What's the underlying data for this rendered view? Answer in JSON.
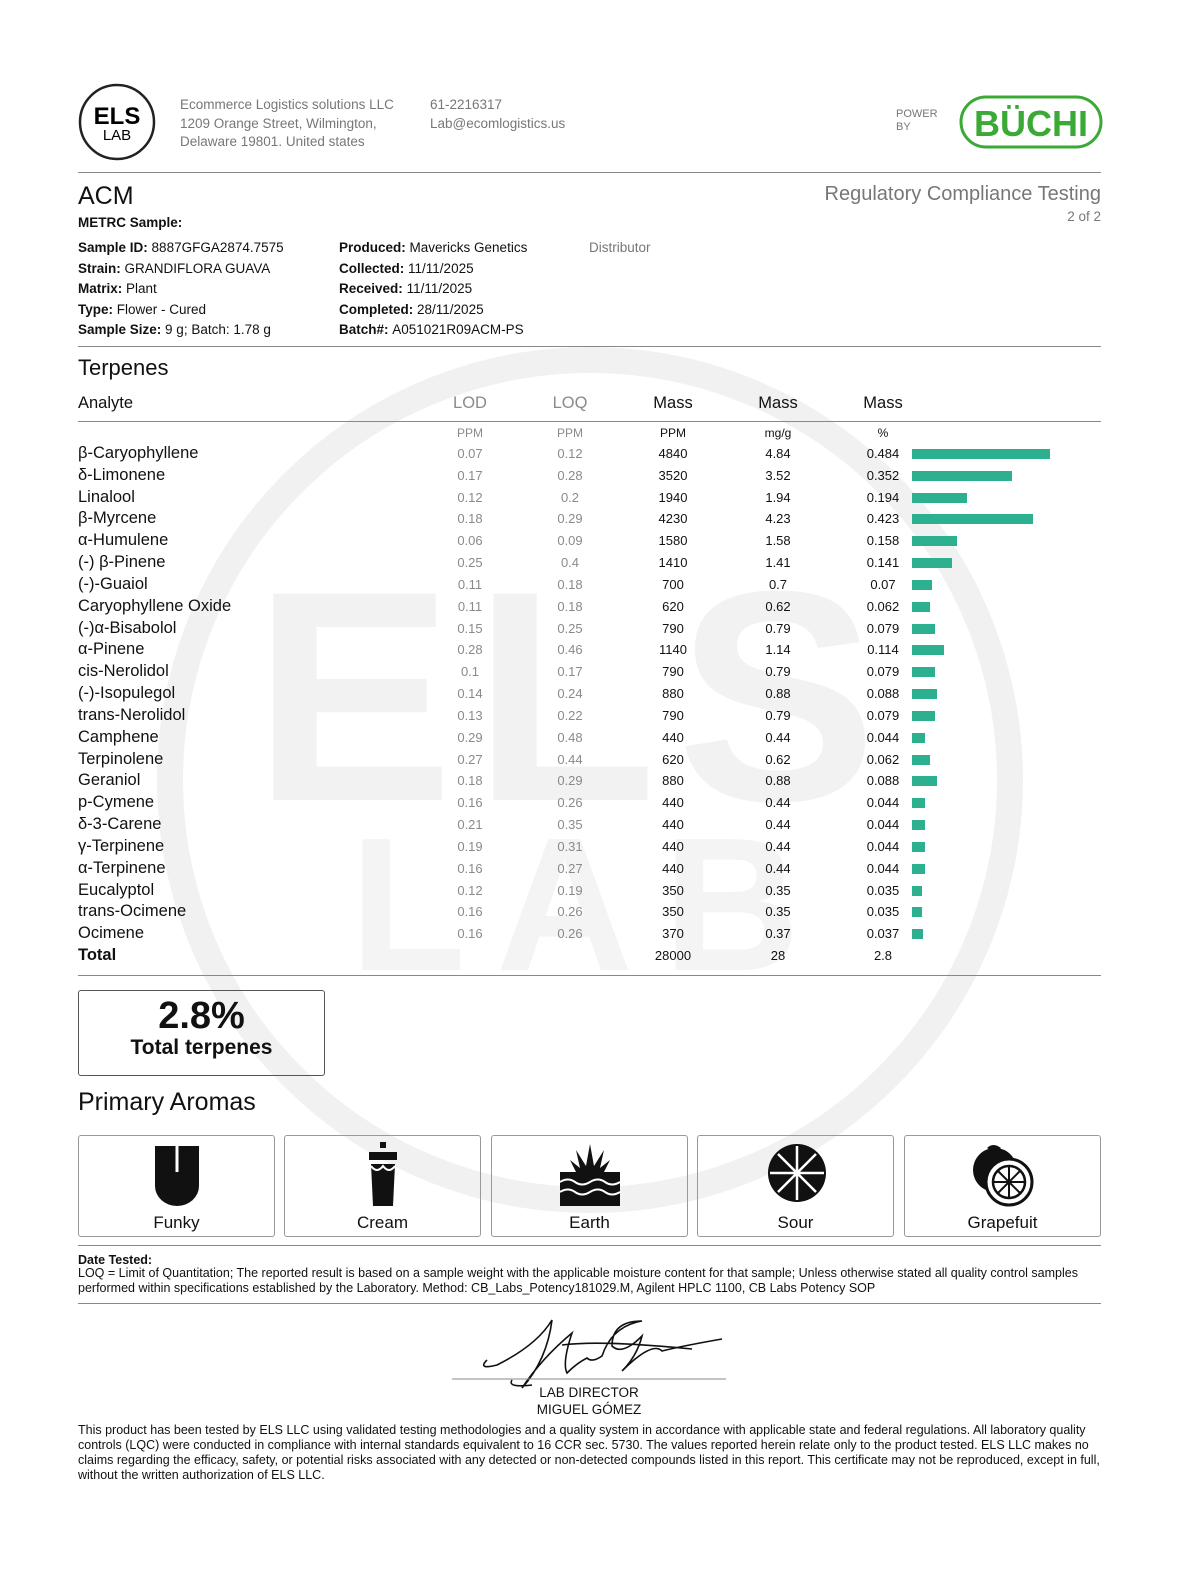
{
  "watermark": [
    "ELS",
    "LAB"
  ],
  "header": {
    "logo": [
      "ELS",
      "LAB"
    ],
    "company": [
      "Ecommerce Logistics solutions LLC",
      "1209 Orange Street, Wilmington,",
      "Delaware 19801. United states"
    ],
    "contact": [
      "61-2216317",
      "Lab@ecomlogistics.us"
    ],
    "powered_by": [
      "POWER",
      "BY"
    ],
    "brand": "BÜCHI"
  },
  "sample": {
    "name": "ACM",
    "metrc": "METRC Sample:",
    "report_title": "Regulatory Compliance Testing",
    "page": "2 of 2",
    "left_fields": [
      {
        "label": "Sample ID:",
        "value": "8887GFGA2874.7575"
      },
      {
        "label": "Strain:",
        "value": "GRANDIFLORA GUAVA"
      },
      {
        "label": "Matrix:",
        "value": "Plant"
      },
      {
        "label": "Type:",
        "value": "Flower - Cured"
      },
      {
        "label": "Sample Size:",
        "value": "9 g; Batch: 1.78 g"
      }
    ],
    "right_fields": [
      {
        "label": "Produced:",
        "value": "Mavericks Genetics"
      },
      {
        "label": "Collected:",
        "value": "11/11/2025"
      },
      {
        "label": "Received:",
        "value": "11/11/2025"
      },
      {
        "label": "Completed:",
        "value": "28/11/2025"
      },
      {
        "label": "Batch#:",
        "value": "A051021R09ACM-PS"
      }
    ],
    "distributor": "Distributor"
  },
  "terpenes": {
    "title": "Terpenes",
    "columns": [
      "Analyte",
      "LOD",
      "LOQ",
      "Mass",
      "Mass",
      "Mass"
    ],
    "units": [
      "PPM",
      "PPM",
      "PPM",
      "mg/g",
      "%"
    ],
    "rows": [
      [
        "β-Caryophyllene",
        0.07,
        0.12,
        4840,
        4.84,
        0.484
      ],
      [
        "δ-Limonene",
        0.17,
        0.28,
        3520,
        3.52,
        0.352
      ],
      [
        "Linalool",
        0.12,
        0.2,
        1940,
        1.94,
        0.194
      ],
      [
        "β-Myrcene",
        0.18,
        0.29,
        4230,
        4.23,
        0.423
      ],
      [
        "α-Humulene",
        0.06,
        0.09,
        1580,
        1.58,
        0.158
      ],
      [
        "(-) β-Pinene",
        0.25,
        0.4,
        1410,
        1.41,
        0.141
      ],
      [
        "(-)-Guaiol",
        0.11,
        0.18,
        700,
        0.7,
        0.07
      ],
      [
        "Caryophyllene Oxide",
        0.11,
        0.18,
        620,
        0.62,
        0.062
      ],
      [
        "(-)α-Bisabolol",
        0.15,
        0.25,
        790,
        0.79,
        0.079
      ],
      [
        "α-Pinene",
        0.28,
        0.46,
        1140,
        1.14,
        0.114
      ],
      [
        "cis-Nerolidol",
        0.1,
        0.17,
        790,
        0.79,
        0.079
      ],
      [
        "(-)-Isopulegol",
        0.14,
        0.24,
        880,
        0.88,
        0.088
      ],
      [
        "trans-Nerolidol",
        0.13,
        0.22,
        790,
        0.79,
        0.079
      ],
      [
        "Camphene",
        0.29,
        0.48,
        440,
        0.44,
        0.044
      ],
      [
        "Terpinolene",
        0.27,
        0.44,
        620,
        0.62,
        0.062
      ],
      [
        "Geraniol",
        0.18,
        0.29,
        880,
        0.88,
        0.088
      ],
      [
        "p-Cymene",
        0.16,
        0.26,
        440,
        0.44,
        0.044
      ],
      [
        "δ-3-Carene",
        0.21,
        0.35,
        440,
        0.44,
        0.044
      ],
      [
        "γ-Terpinene",
        0.19,
        0.31,
        440,
        0.44,
        0.044
      ],
      [
        "α-Terpinene",
        0.16,
        0.27,
        440,
        0.44,
        0.044
      ],
      [
        "Eucalyptol",
        0.12,
        0.19,
        350,
        0.35,
        0.035
      ],
      [
        "trans-Ocimene",
        0.16,
        0.26,
        350,
        0.35,
        0.035
      ],
      [
        "Ocimene",
        0.16,
        0.26,
        370,
        0.37,
        0.037
      ]
    ],
    "total": {
      "label": "Total",
      "ppm": 28000,
      "mg_g": 28,
      "percent": 2.8
    },
    "bar_color": "#2db08f"
  },
  "summary": {
    "value": "2.8%",
    "label": "Total terpenes"
  },
  "aromas": {
    "title": "Primary Aromas",
    "items": [
      "Funky",
      "Cream",
      "Earth",
      "Sour",
      "Grapefuit"
    ]
  },
  "footer": {
    "date_tested": "Date Tested:",
    "note": "LOQ = Limit of Quantitation; The reported result is based on a sample weight with the applicable moisture content for that sample; Unless otherwise stated all quality control samples performed within specifications established by the Laboratory. Method: CB_Labs_Potency181029.M, Agilent HPLC 1100, CB Labs Potency SOP",
    "signer_role": "LAB DIRECTOR",
    "signer_name": "MIGUEL GÓMEZ",
    "disclaimer": "This product has been tested by ELS LLC using validated testing methodologies and a quality system in accordance with applicable state and federal regulations. All laboratory quality controls (LQC) were conducted in compliance with internal standards equivalent to 16 CCR sec. 5730. The values reported herein relate only to the product tested. ELS LLC makes no claims regarding the efficacy, safety, or potential risks associated with any detected or non-detected compounds listed in this report. This certificate may not be reproduced, except in full, without the written authorization of ELS LLC."
  }
}
